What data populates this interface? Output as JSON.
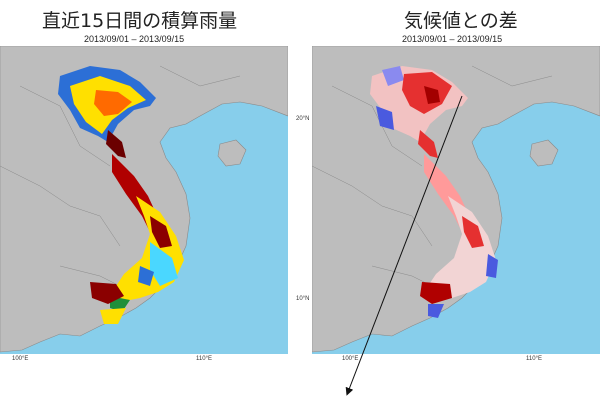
{
  "left_panel": {
    "title": "直近15日間の積算雨量",
    "date_range": "2013/09/01 – 2013/09/15",
    "x_ticks": [
      "100°E",
      "110°E"
    ],
    "y_ticks": []
  },
  "right_panel": {
    "title": "気候値との差",
    "date_range": "2013/09/01 – 2013/09/15",
    "x_ticks": [
      "100°E",
      "110°E"
    ],
    "y_ticks": [
      "20°N",
      "10°N"
    ]
  },
  "colors": {
    "ocean": "#87ceeb",
    "land": "#bdbdbd",
    "rain_high": "#8b0000",
    "rain_mid": "#ffff00",
    "rain_low": "#1e3fbf",
    "anom_pos": "#e53030",
    "anom_neg": "#4a5adf"
  }
}
